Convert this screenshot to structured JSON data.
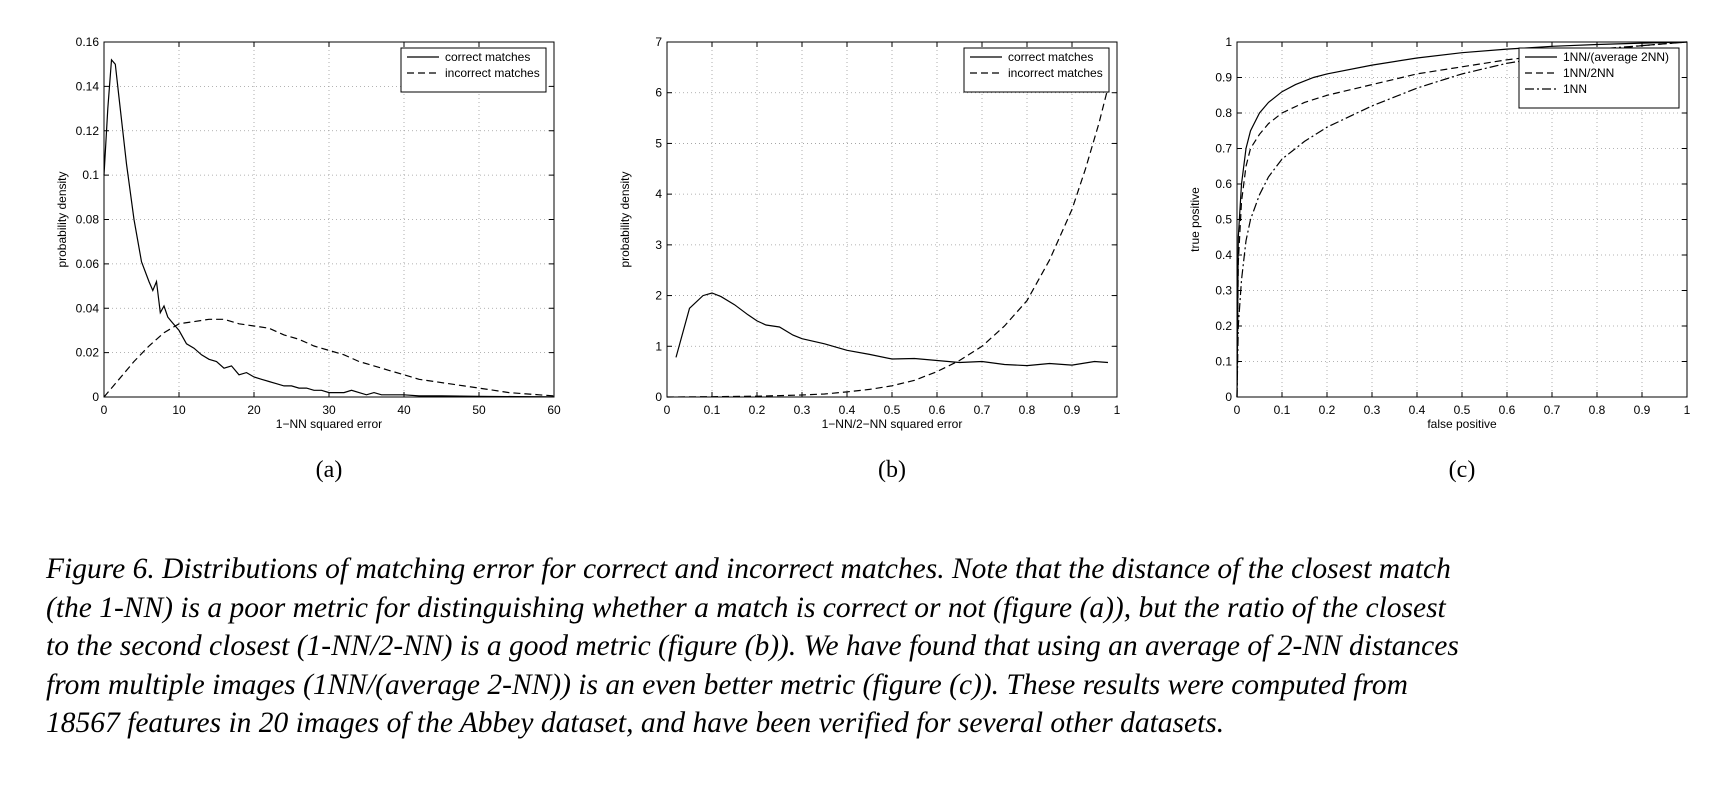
{
  "figure": {
    "panels": [
      {
        "label": "(a)",
        "chart_data": {
          "type": "line",
          "xlabel": "1−NN squared error",
          "ylabel": "probability density",
          "xlim": [
            0,
            60
          ],
          "ylim": [
            0,
            0.16
          ],
          "xticks": [
            0,
            10,
            20,
            30,
            40,
            50,
            60
          ],
          "xtick_labels": [
            "0",
            "10",
            "20",
            "30",
            "40",
            "50",
            "60"
          ],
          "yticks": [
            0,
            0.02,
            0.04,
            0.06,
            0.08,
            0.1,
            0.12,
            0.14,
            0.16
          ],
          "ytick_labels": [
            "0",
            "0.02",
            "0.04",
            "0.06",
            "0.08",
            "0.1",
            "0.12",
            "0.14",
            "0.16"
          ],
          "grid": true,
          "legend_position": "top-right",
          "series": [
            {
              "name": "correct matches",
              "style": "solid",
              "x": [
                0,
                0.5,
                1,
                1.5,
                2,
                3,
                4,
                5,
                6,
                6.5,
                7,
                7.5,
                8,
                8.5,
                9,
                10,
                11,
                12,
                13,
                14,
                15,
                16,
                17,
                18,
                19,
                20,
                21,
                22,
                23,
                24,
                25,
                26,
                27,
                28,
                29,
                30,
                31,
                32,
                33,
                34,
                35,
                36,
                37,
                38,
                40,
                42,
                45,
                50,
                55,
                60
              ],
              "y": [
                0.1,
                0.13,
                0.152,
                0.15,
                0.135,
                0.105,
                0.08,
                0.061,
                0.052,
                0.048,
                0.052,
                0.038,
                0.041,
                0.036,
                0.034,
                0.03,
                0.024,
                0.022,
                0.019,
                0.017,
                0.016,
                0.013,
                0.014,
                0.01,
                0.011,
                0.009,
                0.008,
                0.007,
                0.006,
                0.005,
                0.005,
                0.004,
                0.004,
                0.003,
                0.003,
                0.002,
                0.002,
                0.002,
                0.003,
                0.002,
                0.001,
                0.002,
                0.001,
                0.001,
                0.001,
                0.0005,
                0.0005,
                0.0003,
                0.0002,
                0.0001
              ]
            },
            {
              "name": "incorrect matches",
              "style": "dashed",
              "x": [
                0,
                2,
                4,
                6,
                8,
                10,
                12,
                14,
                16,
                18,
                20,
                22,
                24,
                26,
                28,
                30,
                32,
                34,
                36,
                38,
                40,
                42,
                44,
                46,
                48,
                50,
                52,
                54,
                56,
                58,
                60
              ],
              "y": [
                0,
                0.008,
                0.016,
                0.023,
                0.029,
                0.033,
                0.034,
                0.035,
                0.035,
                0.033,
                0.032,
                0.031,
                0.028,
                0.026,
                0.023,
                0.021,
                0.019,
                0.016,
                0.014,
                0.012,
                0.01,
                0.008,
                0.007,
                0.006,
                0.005,
                0.004,
                0.003,
                0.002,
                0.0015,
                0.001,
                0.0005
              ]
            }
          ]
        }
      },
      {
        "label": "(b)",
        "chart_data": {
          "type": "line",
          "xlabel": "1−NN/2−NN squared error",
          "ylabel": "probability density",
          "xlim": [
            0,
            1
          ],
          "ylim": [
            0,
            7
          ],
          "xticks": [
            0,
            0.1,
            0.2,
            0.3,
            0.4,
            0.5,
            0.6,
            0.7,
            0.8,
            0.9,
            1
          ],
          "xtick_labels": [
            "0",
            "0.1",
            "0.2",
            "0.3",
            "0.4",
            "0.5",
            "0.6",
            "0.7",
            "0.8",
            "0.9",
            "1"
          ],
          "yticks": [
            0,
            1,
            2,
            3,
            4,
            5,
            6,
            7
          ],
          "ytick_labels": [
            "0",
            "1",
            "2",
            "3",
            "4",
            "5",
            "6",
            "7"
          ],
          "grid": true,
          "legend_position": "top-right",
          "series": [
            {
              "name": "correct matches",
              "style": "solid",
              "x": [
                0.02,
                0.05,
                0.08,
                0.1,
                0.12,
                0.15,
                0.18,
                0.2,
                0.22,
                0.25,
                0.28,
                0.3,
                0.35,
                0.4,
                0.45,
                0.5,
                0.55,
                0.6,
                0.65,
                0.7,
                0.75,
                0.8,
                0.85,
                0.9,
                0.95,
                0.98
              ],
              "y": [
                0.78,
                1.75,
                2.0,
                2.05,
                1.98,
                1.82,
                1.62,
                1.5,
                1.42,
                1.38,
                1.22,
                1.15,
                1.05,
                0.92,
                0.84,
                0.75,
                0.76,
                0.72,
                0.68,
                0.7,
                0.64,
                0.62,
                0.66,
                0.63,
                0.7,
                0.68
              ]
            },
            {
              "name": "incorrect matches",
              "style": "dashed",
              "x": [
                0.0,
                0.1,
                0.2,
                0.3,
                0.35,
                0.4,
                0.45,
                0.5,
                0.55,
                0.6,
                0.65,
                0.7,
                0.75,
                0.8,
                0.85,
                0.9,
                0.93,
                0.96,
                0.98
              ],
              "y": [
                0.0,
                0.005,
                0.015,
                0.04,
                0.06,
                0.1,
                0.15,
                0.22,
                0.33,
                0.5,
                0.72,
                1.0,
                1.4,
                1.9,
                2.7,
                3.7,
                4.5,
                5.4,
                6.1
              ]
            }
          ]
        }
      },
      {
        "label": "(c)",
        "chart_data": {
          "type": "line",
          "xlabel": "false positive",
          "ylabel": "true positive",
          "xlim": [
            0,
            1
          ],
          "ylim": [
            0,
            1
          ],
          "xticks": [
            0,
            0.1,
            0.2,
            0.3,
            0.4,
            0.5,
            0.6,
            0.7,
            0.8,
            0.9,
            1
          ],
          "xtick_labels": [
            "0",
            "0.1",
            "0.2",
            "0.3",
            "0.4",
            "0.5",
            "0.6",
            "0.7",
            "0.8",
            "0.9",
            "1"
          ],
          "yticks": [
            0,
            0.1,
            0.2,
            0.3,
            0.4,
            0.5,
            0.6,
            0.7,
            0.8,
            0.9,
            1
          ],
          "ytick_labels": [
            "0",
            "0.1",
            "0.2",
            "0.3",
            "0.4",
            "0.5",
            "0.6",
            "0.7",
            "0.8",
            "0.9",
            "1"
          ],
          "grid": true,
          "legend_position": "top-right",
          "series": [
            {
              "name": "1NN/(average 2NN)",
              "style": "solid",
              "x": [
                0,
                0.003,
                0.01,
                0.02,
                0.03,
                0.05,
                0.07,
                0.1,
                0.13,
                0.17,
                0.2,
                0.3,
                0.4,
                0.5,
                0.6,
                0.7,
                0.8,
                0.9,
                1
              ],
              "y": [
                0,
                0.45,
                0.6,
                0.7,
                0.75,
                0.8,
                0.83,
                0.86,
                0.88,
                0.9,
                0.91,
                0.935,
                0.955,
                0.97,
                0.98,
                0.988,
                0.993,
                0.997,
                1.0
              ]
            },
            {
              "name": "1NN/2NN",
              "style": "dashed",
              "x": [
                0,
                0.003,
                0.01,
                0.02,
                0.03,
                0.05,
                0.07,
                0.1,
                0.15,
                0.2,
                0.3,
                0.4,
                0.5,
                0.6,
                0.7,
                0.8,
                0.9,
                1
              ],
              "y": [
                0,
                0.38,
                0.55,
                0.65,
                0.7,
                0.74,
                0.77,
                0.8,
                0.83,
                0.85,
                0.88,
                0.91,
                0.93,
                0.95,
                0.965,
                0.975,
                0.99,
                1.0
              ]
            },
            {
              "name": "1NN",
              "style": "dashdot",
              "x": [
                0,
                0.003,
                0.01,
                0.02,
                0.03,
                0.05,
                0.07,
                0.1,
                0.15,
                0.2,
                0.3,
                0.4,
                0.5,
                0.6,
                0.7,
                0.8,
                0.9,
                1
              ],
              "y": [
                0,
                0.2,
                0.33,
                0.44,
                0.5,
                0.57,
                0.62,
                0.67,
                0.72,
                0.76,
                0.82,
                0.87,
                0.91,
                0.94,
                0.96,
                0.98,
                0.99,
                1.0
              ]
            }
          ]
        }
      }
    ]
  },
  "caption": {
    "lines": [
      "Figure 6. Distributions of matching error for correct and incorrect matches. Note that the distance of the closest match",
      "(the 1-NN) is a poor metric for distinguishing whether a match is correct or not (figure (a)), but the ratio of the closest",
      "to the second closest (1-NN/2-NN) is a good metric (figure (b)). We have found that using an average of 2-NN distances",
      "from multiple images (1NN/(average 2-NN)) is an even better metric (figure (c)).  These results were computed from",
      "18567 features in 20 images of the Abbey dataset, and have been verified for several other datasets."
    ]
  }
}
